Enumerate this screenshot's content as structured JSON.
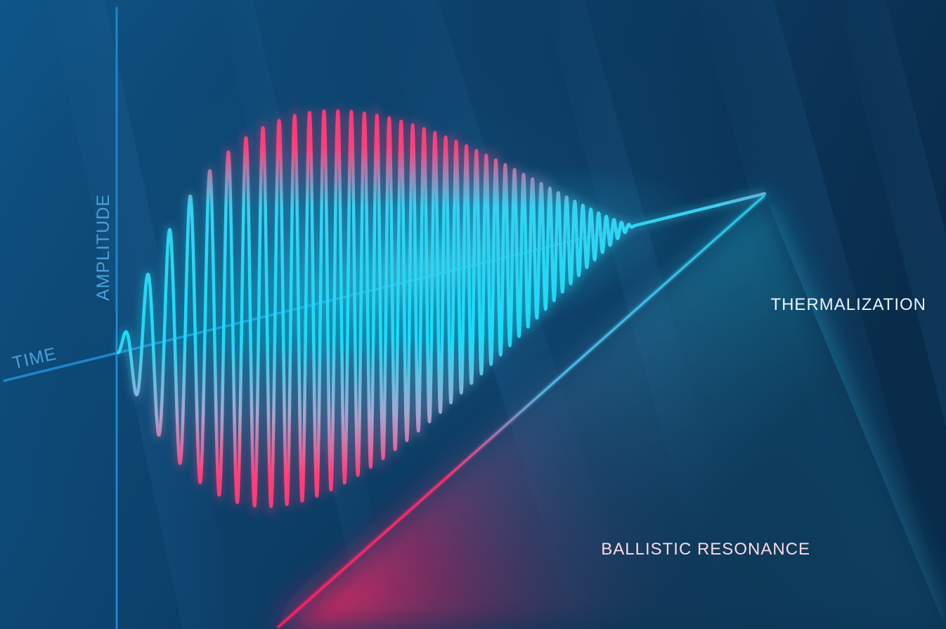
{
  "labels": {
    "y_axis": "AMPLITUDE",
    "x_axis": "TIME",
    "upper_callout": "THERMALIZATION",
    "lower_callout": "BALLISTIC RESONANCE"
  },
  "colors": {
    "background_left": "#0f5588",
    "background_right": "#0a2c4b",
    "axis": "#1e86cf",
    "axis_label": "#4c9fd8",
    "wave_cyan": "#19d6f4",
    "wave_pink": "#ff2d6e",
    "callout_text": "#e8f6ff",
    "callout_text_pink": "#ffd9e6",
    "thermalization_line": "#22c8ea",
    "resonance_line": "#ff1f5e"
  }
}
